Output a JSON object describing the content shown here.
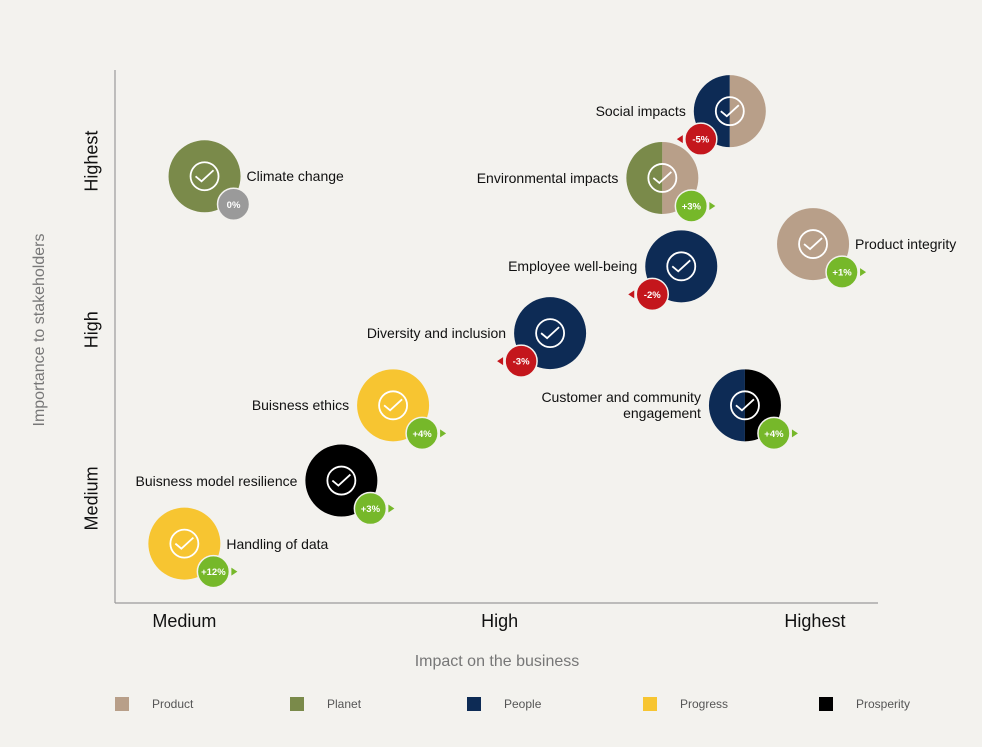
{
  "chart_data": {
    "type": "scatter",
    "x_label": "Impact on the business",
    "y_label": "Importance to stakeholders",
    "xlim": [
      -11,
      110
    ],
    "ylim": [
      -31,
      127
    ],
    "xticks": [
      {
        "value": 0,
        "label": "Medium"
      },
      {
        "value": 50,
        "label": "High"
      },
      {
        "value": 100,
        "label": "Highest"
      }
    ],
    "yticks": [
      {
        "value": 0,
        "label": "Medium"
      },
      {
        "value": 50,
        "label": "High"
      },
      {
        "value": 100,
        "label": "Highest"
      }
    ],
    "legend": [
      {
        "name": "Product",
        "color": "#b89f89"
      },
      {
        "name": "Planet",
        "color": "#7a8a4a"
      },
      {
        "name": "People",
        "color": "#0d2b55"
      },
      {
        "name": "Progress",
        "color": "#f7c531"
      },
      {
        "name": "Prosperity",
        "color": "#000000"
      }
    ],
    "points": [
      {
        "label": "Social impacts",
        "x": 86.5,
        "y": 114.8,
        "change": -5,
        "change_label": "-5%",
        "groups": [
          2,
          0
        ]
      },
      {
        "label": "Environmental impacts",
        "x": 75.8,
        "y": 95,
        "change": 3,
        "change_label": "+3%",
        "groups": [
          1,
          0
        ]
      },
      {
        "label": "Climate change",
        "x": 3.2,
        "y": 95.5,
        "change": 0,
        "change_label": "0%",
        "groups": [
          1
        ]
      },
      {
        "label": "Product integrity",
        "x": 99.7,
        "y": 75.4,
        "change": 1,
        "change_label": "+1%",
        "groups": [
          0
        ]
      },
      {
        "label": "Employee well-being",
        "x": 78.8,
        "y": 68.8,
        "change": -2,
        "change_label": "-2%",
        "groups": [
          2
        ]
      },
      {
        "label": "Diversity and inclusion",
        "x": 58,
        "y": 49,
        "change": -3,
        "change_label": "-3%",
        "groups": [
          2
        ]
      },
      {
        "label": "Customer and community engagement",
        "x": 88.9,
        "y": 27.6,
        "change": 4,
        "change_label": "+4%",
        "groups": [
          2,
          4
        ]
      },
      {
        "label": "Buisness ethics",
        "x": 33.1,
        "y": 27.6,
        "change": 4,
        "change_label": "+4%",
        "groups": [
          3
        ]
      },
      {
        "label": "Buisness model resilience",
        "x": 24.9,
        "y": 5.3,
        "change": 3,
        "change_label": "+3%",
        "groups": [
          4
        ]
      },
      {
        "label": "Handling of data",
        "x": 0,
        "y": -13.4,
        "change": 12,
        "change_label": "+12%",
        "groups": [
          3
        ]
      }
    ]
  }
}
